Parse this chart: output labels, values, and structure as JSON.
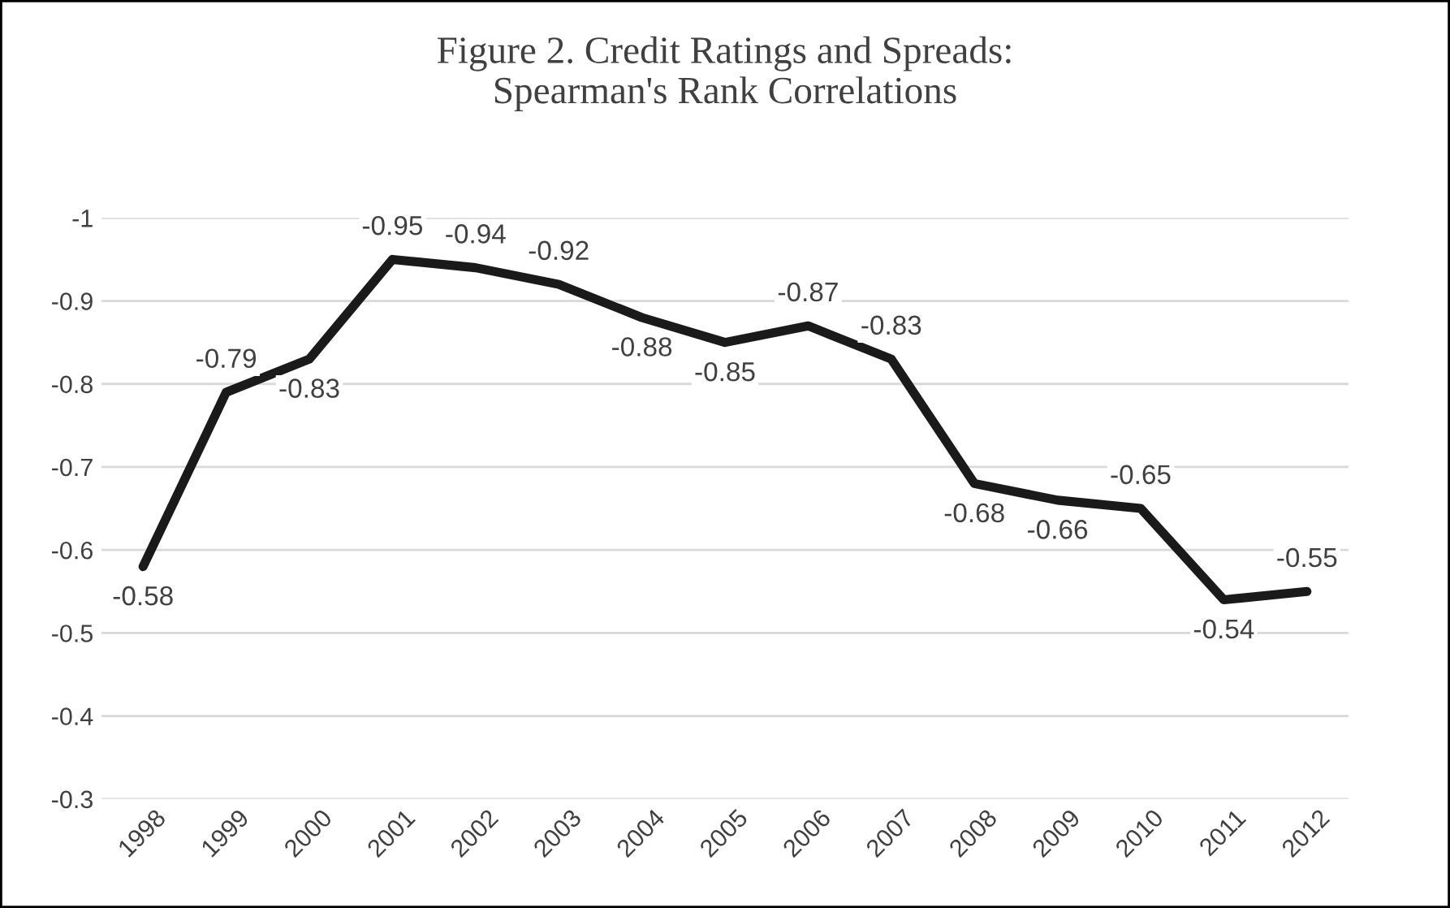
{
  "chart_data": {
    "type": "line",
    "title": "Figure 2. Credit Ratings and Spreads:\nSpearman's Rank Correlations",
    "categories": [
      "1998",
      "1999",
      "2000",
      "2001",
      "2002",
      "2003",
      "2004",
      "2005",
      "2006",
      "2007",
      "2008",
      "2009",
      "2010",
      "2011",
      "2012"
    ],
    "series": [
      {
        "color": "#1a1a1a",
        "values": [
          -0.58,
          -0.79,
          -0.83,
          -0.95,
          -0.94,
          -0.92,
          -0.88,
          -0.85,
          -0.87,
          -0.83,
          -0.68,
          -0.66,
          -0.65,
          -0.54,
          -0.55
        ]
      }
    ],
    "ylim": [
      -0.3,
      -1
    ],
    "yticks": [
      -1,
      -0.9,
      -0.8,
      -0.7,
      -0.6,
      -0.5,
      -0.4,
      -0.3
    ],
    "grid": "y",
    "data_labels": true,
    "legend": false,
    "marker": "none",
    "line_style": "solid"
  }
}
